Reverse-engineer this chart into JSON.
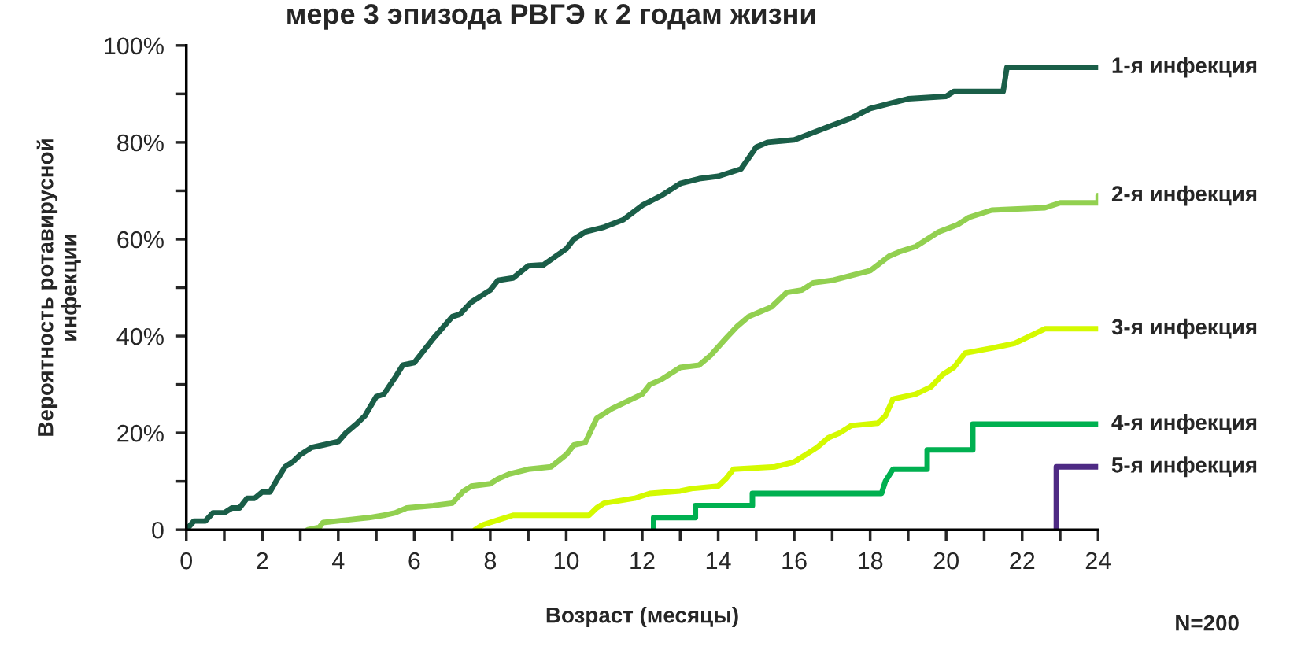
{
  "chart_data": {
    "type": "line",
    "title": "мере 3 эпизода РВГЭ к 2 годам жизни",
    "xlabel": "Возраст (месяцы)",
    "ylabel": "Вероятность ротавирусной\nинфекции",
    "xlim": [
      0,
      24
    ],
    "ylim": [
      0,
      100
    ],
    "xticks": [
      0,
      {
        "value": 1,
        "label": null
      },
      2,
      {
        "value": 3,
        "label": null
      },
      4,
      {
        "value": 5,
        "label": null
      },
      6,
      {
        "value": 7,
        "label": null
      },
      8,
      {
        "value": 9,
        "label": null
      },
      10,
      {
        "value": 11,
        "label": null
      },
      12,
      {
        "value": 13,
        "label": null
      },
      14,
      {
        "value": 15,
        "label": null
      },
      16,
      {
        "value": 17,
        "label": null
      },
      18,
      {
        "value": 19,
        "label": null
      },
      20,
      {
        "value": 21,
        "label": null
      },
      22,
      {
        "value": 23,
        "label": null
      },
      24
    ],
    "yticks": [
      0,
      {
        "value": 10,
        "label": null
      },
      {
        "value": 20,
        "label": "20%"
      },
      {
        "value": 30,
        "label": null
      },
      {
        "value": 40,
        "label": "40%"
      },
      {
        "value": 50,
        "label": null
      },
      {
        "value": 60,
        "label": "60%"
      },
      {
        "value": 70,
        "label": null
      },
      {
        "value": 80,
        "label": "80%"
      },
      {
        "value": 90,
        "label": null
      },
      {
        "value": 100,
        "label": "100%"
      }
    ],
    "grid": false,
    "legend": false,
    "marker": "none",
    "line_style": "solid",
    "series": [
      {
        "name": "1-я инфекция",
        "color": "#1a5e48",
        "x": [
          0,
          0.2,
          0.5,
          0.7,
          1.0,
          1.2,
          1.4,
          1.6,
          1.8,
          2.0,
          2.2,
          2.4,
          2.6,
          2.8,
          3.0,
          3.3,
          3.6,
          4.0,
          4.2,
          4.5,
          4.7,
          5.0,
          5.2,
          5.5,
          5.7,
          6.0,
          6.2,
          6.5,
          7.0,
          7.2,
          7.5,
          8.0,
          8.2,
          8.6,
          9.0,
          9.4,
          10.0,
          10.2,
          10.5,
          11.0,
          11.5,
          12.0,
          12.5,
          13.0,
          13.5,
          14.0,
          14.6,
          15.0,
          15.3,
          16.0,
          16.5,
          17.0,
          17.5,
          18.0,
          18.5,
          19.0,
          20.0,
          20.2,
          21.5,
          21.6,
          24
        ],
        "values": [
          0,
          1.8,
          1.8,
          3.5,
          3.5,
          4.5,
          4.5,
          6.5,
          6.5,
          7.8,
          7.8,
          10.5,
          13,
          14,
          15.5,
          17,
          17.5,
          18.2,
          20,
          22,
          23.5,
          27.5,
          28,
          31.5,
          34,
          34.5,
          36.5,
          39.5,
          44,
          44.5,
          47,
          49.5,
          51.5,
          52,
          54.5,
          54.7,
          58,
          60,
          61.5,
          62.5,
          64,
          67,
          69,
          71.5,
          72.5,
          73,
          74.5,
          79,
          80,
          80.5,
          82,
          83.5,
          85,
          87,
          88,
          89,
          89.5,
          90.5,
          90.5,
          95.5,
          95.5
        ]
      },
      {
        "name": "2-я инфекция",
        "color": "#92d050",
        "x": [
          3.2,
          3.5,
          3.6,
          4.2,
          4.8,
          5.2,
          5.5,
          5.8,
          6.5,
          7.0,
          7.3,
          7.5,
          8.0,
          8.2,
          8.5,
          9.0,
          9.6,
          10.0,
          10.2,
          10.5,
          10.8,
          11.2,
          12.0,
          12.2,
          12.5,
          13.0,
          13.5,
          13.8,
          14.2,
          14.5,
          14.8,
          15.1,
          15.4,
          15.8,
          16.2,
          16.5,
          17.0,
          17.5,
          18.0,
          18.5,
          18.8,
          19.2,
          19.5,
          19.8,
          20.3,
          20.6,
          21.2,
          22.6,
          23.0,
          24,
          24
        ],
        "values": [
          0,
          0.5,
          1.5,
          2,
          2.5,
          3,
          3.5,
          4.5,
          5,
          5.5,
          8,
          9,
          9.5,
          10.5,
          11.5,
          12.5,
          13,
          15.5,
          17.5,
          18,
          23,
          25,
          28,
          30,
          31,
          33.5,
          34,
          36,
          39.5,
          42,
          44,
          45,
          46,
          49,
          49.5,
          51,
          51.5,
          52.5,
          53.5,
          56.5,
          57.5,
          58.5,
          60,
          61.5,
          63,
          64.5,
          66,
          66.5,
          67.5,
          67.5,
          69
        ]
      },
      {
        "name": "3-я инфекция",
        "color": "#d4fa00",
        "x": [
          7.6,
          7.8,
          8.2,
          8.6,
          9.0,
          10.6,
          10.8,
          11.0,
          11.8,
          12.2,
          13.0,
          13.3,
          14.0,
          14.2,
          14.4,
          15.5,
          16.0,
          16.3,
          16.6,
          16.9,
          17.2,
          17.5,
          18.2,
          18.4,
          18.6,
          19.2,
          19.6,
          19.9,
          20.2,
          20.5,
          21.2,
          21.8,
          22.2,
          22.6,
          24
        ],
        "values": [
          0,
          1,
          2,
          3,
          3,
          3,
          4.5,
          5.5,
          6.5,
          7.5,
          8,
          8.5,
          9,
          10.5,
          12.5,
          13,
          14,
          15.5,
          17,
          19,
          20,
          21.5,
          22,
          23.5,
          27,
          28,
          29.5,
          32,
          33.5,
          36.5,
          37.5,
          38.5,
          40,
          41.5,
          41.5
        ]
      },
      {
        "name": "4-я инфекция",
        "color": "#00b050",
        "x": [
          12.3,
          12.3,
          13.4,
          13.4,
          14.9,
          14.9,
          18.3,
          18.4,
          18.6,
          19.5,
          19.5,
          20.7,
          20.7,
          24
        ],
        "values": [
          0,
          2.5,
          2.5,
          5,
          5,
          7.5,
          7.5,
          10,
          12.5,
          12.5,
          16.5,
          16.5,
          21.8,
          21.8
        ]
      },
      {
        "name": "5-я инфекция",
        "color": "#4e2a84",
        "x": [
          22.9,
          22.9,
          24
        ],
        "values": [
          0,
          13,
          13
        ]
      }
    ],
    "annotations": [
      "N=200"
    ]
  }
}
